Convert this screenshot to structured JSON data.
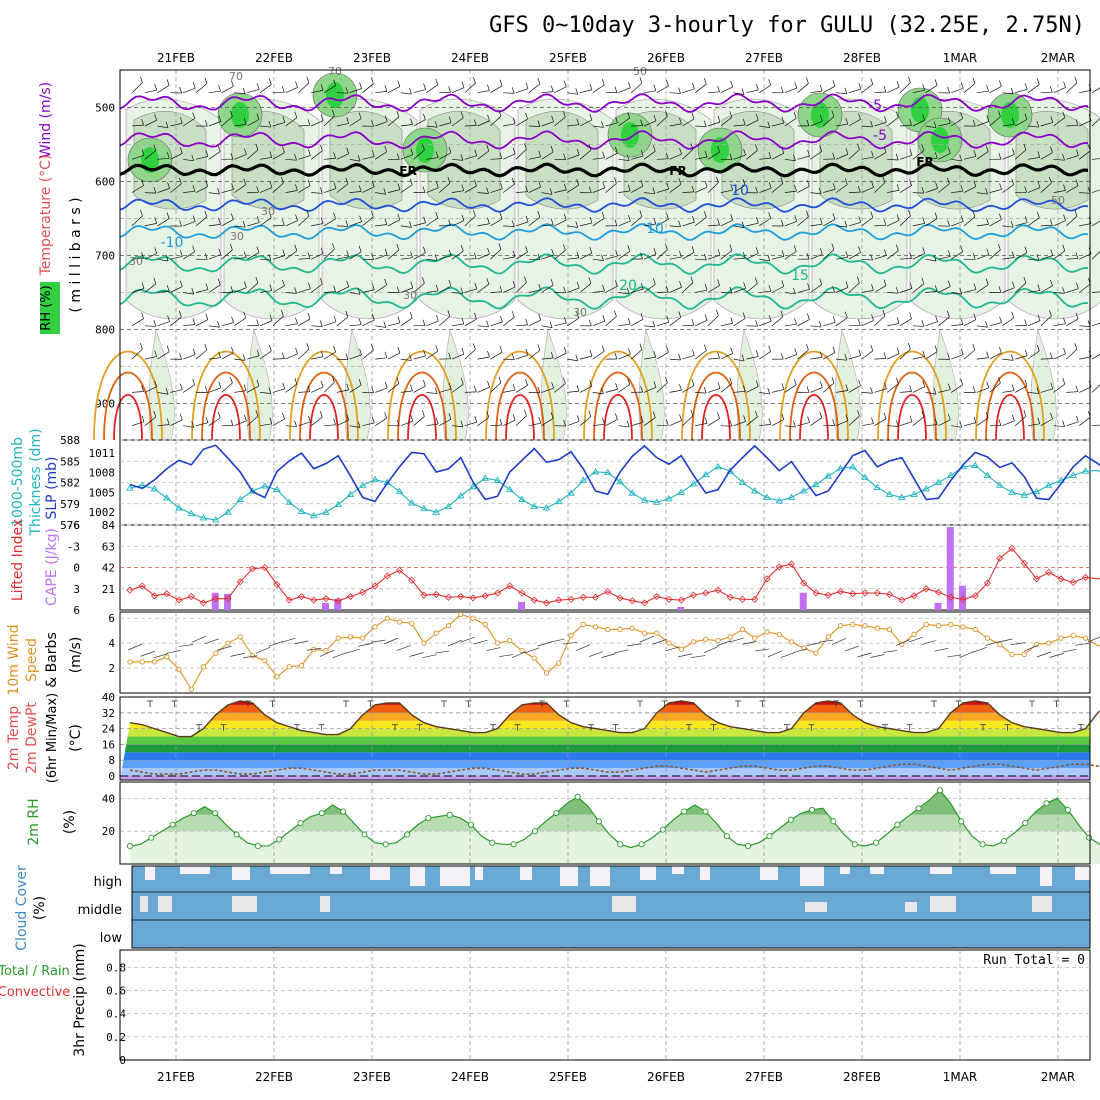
{
  "title": "GFS 0~10day 3-hourly for GULU (32.25E, 2.75N)",
  "days": [
    "21FEB",
    "22FEB",
    "23FEB",
    "24FEB",
    "25FEB",
    "26FEB",
    "27FEB",
    "28FEB",
    "1MAR",
    "2MAR"
  ],
  "panels": {
    "upper_air": {
      "labels": [
        "Wind (m/s)",
        "Temperature (°C)",
        "RH (%)",
        "( m i l l i b a r s )"
      ],
      "pressure_ticks": [
        500,
        600,
        700,
        800,
        900
      ],
      "contour_labels": [
        "FR",
        "FR",
        "FR",
        "-5",
        "-5",
        "10",
        "-10",
        "10",
        "15",
        "20",
        "30",
        "30",
        "30",
        "30",
        "30",
        "50",
        "50",
        "70",
        "70"
      ]
    },
    "thickness_slp": {
      "labels": [
        "1000-500mb",
        "Thickness (dm)",
        "SLP (mb)"
      ],
      "left_ticks": [
        588,
        585,
        582,
        579,
        576
      ],
      "right_ticks": [
        1011,
        1008,
        1005,
        1002
      ]
    },
    "li_cape": {
      "labels": [
        "Lifted Index",
        "CAPE (J/kg)"
      ],
      "left_ticks": [
        -6,
        -3,
        0,
        3,
        6
      ],
      "right_ticks": [
        84,
        63,
        42,
        21
      ]
    },
    "wind10m": {
      "labels": [
        "10m Wind",
        "Speed",
        "& Barbs",
        "(m/s)"
      ],
      "ticks": [
        6,
        4,
        2
      ]
    },
    "temp2m": {
      "labels": [
        "2m Temp",
        "2m DewPt",
        "(6hr Min/Max)",
        "(°C)"
      ],
      "ticks": [
        40,
        32,
        24,
        16,
        8,
        0
      ]
    },
    "rh2m": {
      "labels": [
        "2m RH",
        "(%)"
      ],
      "ticks": [
        40,
        20
      ]
    },
    "cloud": {
      "labels": [
        "Cloud Cover",
        "(%)"
      ],
      "levels": [
        "high",
        "middle",
        "low"
      ]
    },
    "precip": {
      "labels": [
        "Total / Rain",
        "Convective",
        "3hr Precip (mm)"
      ],
      "ticks": [
        0.8,
        0.6,
        0.4,
        0.2,
        0
      ],
      "run_total": "Run Total = 0"
    }
  },
  "colors": {
    "wind_contour": "#8b00c8",
    "temp_cold": "#1f4fd8",
    "temp_cool": "#1e9edc",
    "temp_warm": "#20b890",
    "temp_hot1": "#e0a020",
    "temp_hot2": "#e06010",
    "temp_hot3": "#e02020",
    "rh_green": "#30d040",
    "thickness": "#20b4c0",
    "slp": "#1c3cc8",
    "li": "#e03030",
    "cape": "#c070f0",
    "wind_speed": "#e09020",
    "cloud": "#6aa9d4",
    "rh2m": "#2a9a2a"
  },
  "chart_data": [
    {
      "type": "line",
      "name": "1000-500mb Thickness",
      "units": "dm",
      "ylim": [
        576,
        588
      ],
      "x_start": "21FEB 00Z",
      "x_step_hours": 3,
      "series": [
        {
          "values": [
            581.2,
            581.6,
            581.1,
            579.8,
            578.4,
            577.6,
            577.0,
            576.7,
            577.8,
            579.6,
            580.8,
            581.5,
            581.0,
            579.2,
            577.9,
            577.3,
            577.8,
            578.9,
            580.3,
            581.6,
            582.4,
            582.0,
            580.7,
            579.1,
            578.3,
            577.8,
            578.6,
            580.1,
            581.4,
            582.6,
            582.3,
            581.0,
            579.6,
            578.6,
            578.4,
            579.3,
            580.5,
            582.3,
            583.5,
            583.4,
            582.1,
            580.5,
            579.5,
            579.2,
            579.7,
            580.6,
            581.8,
            583.1,
            584.2,
            583.6,
            582.0,
            580.8,
            579.9,
            579.4,
            579.9,
            580.8,
            581.7,
            582.9,
            584.0,
            584.2,
            582.7,
            581.3,
            580.3,
            579.9,
            580.3,
            581.1,
            582.0,
            583.0,
            584.2,
            584.4,
            583.0,
            581.6,
            580.6,
            580.2,
            580.7,
            581.6,
            582.3,
            583.0,
            583.6,
            583.7,
            582.8,
            581.5,
            580.6,
            580.2,
            580.7,
            581.6,
            582.6,
            583.8,
            584.9,
            585.9,
            585.0,
            583.2,
            581.5,
            580.2,
            580.2,
            581.0
          ]
        }
      ]
    },
    {
      "type": "line",
      "name": "SLP",
      "units": "mb",
      "ylim": [
        1000,
        1013
      ],
      "x_start": "21FEB 00Z",
      "x_step_hours": 3,
      "series": [
        {
          "values": [
            1006.2,
            1005.6,
            1006.9,
            1008.6,
            1009.9,
            1009.2,
            1011.6,
            1012.2,
            1010.2,
            1008.1,
            1005.1,
            1004.2,
            1008.2,
            1009.8,
            1011.0,
            1008.6,
            1009.4,
            1010.6,
            1007.5,
            1004.2,
            1003.6,
            1006.4,
            1008.9,
            1011.1,
            1010.9,
            1008.1,
            1008.6,
            1010.3,
            1006.6,
            1003.9,
            1004.4,
            1008.1,
            1009.9,
            1011.7,
            1009.6,
            1010.0,
            1011.2,
            1008.6,
            1005.2,
            1004.7,
            1008.1,
            1010.5,
            1012.1,
            1010.3,
            1009.3,
            1010.6,
            1007.6,
            1004.9,
            1005.4,
            1008.4,
            1010.3,
            1012.1,
            1010.3,
            1008.3,
            1009.7,
            1007.0,
            1004.5,
            1005.2,
            1007.9,
            1010.6,
            1011.4,
            1008.9,
            1009.8,
            1010.3,
            1007.1,
            1003.9,
            1004.1,
            1006.8,
            1009.2,
            1011.1,
            1010.4,
            1008.8,
            1009.5,
            1007.4,
            1004.1,
            1003.9,
            1006.3,
            1008.9,
            1010.6,
            1009.4,
            1008.1,
            1008.8,
            1006.6,
            1003.9,
            1004.0,
            1006.5,
            1009.6,
            1011.0,
            1009.1,
            1008.9,
            1006.7,
            1002.3,
            1001.1,
            1004.6,
            1007.0,
            1008.2,
            1009.2
          ]
        }
      ]
    },
    {
      "type": "line",
      "name": "Lifted Index",
      "ylim": [
        6,
        -6
      ],
      "x_start": "21FEB 00Z",
      "x_step_hours": 3,
      "series": [
        {
          "values": [
            3.2,
            2.6,
            4.0,
            3.7,
            4.6,
            4.1,
            5.0,
            4.4,
            4.4,
            2.0,
            0.2,
            0.0,
            2.4,
            4.6,
            4.1,
            4.6,
            4.4,
            4.7,
            4.1,
            3.5,
            2.6,
            1.2,
            0.4,
            1.8,
            3.9,
            3.8,
            4.2,
            4.1,
            4.3,
            4.0,
            3.6,
            2.6,
            3.6,
            4.6,
            5.0,
            4.6,
            4.5,
            4.2,
            4.2,
            3.4,
            4.3,
            4.7,
            5.0,
            4.1,
            4.5,
            4.6,
            3.9,
            3.6,
            3.2,
            4.2,
            4.5,
            4.5,
            1.6,
            -0.1,
            -0.5,
            2.2,
            3.6,
            3.9,
            3.4,
            3.7,
            3.6,
            3.6,
            3.8,
            4.6,
            4.0,
            3.0,
            3.5,
            4.2,
            4.5,
            4.0,
            2.2,
            -1.3,
            -2.7,
            -0.6,
            1.6,
            0.7,
            1.6,
            2.1,
            1.4,
            1.6,
            1.4,
            1.2,
            0.6,
            -0.5,
            1.1,
            1.7,
            3.0,
            3.2,
            3.1,
            3.0,
            2.4,
            1.6,
            0.7,
            -1.3,
            0.0,
            2.8,
            3.1
          ]
        }
      ]
    },
    {
      "type": "bar",
      "name": "CAPE",
      "units": "J/kg",
      "ylim": [
        0,
        84
      ],
      "x_start": "21FEB 00Z",
      "x_step_hours": 3,
      "values": [
        0,
        0,
        0,
        0,
        0,
        0,
        0,
        0,
        0,
        0,
        0,
        0,
        0,
        0,
        0,
        0,
        0,
        0,
        0,
        0,
        0,
        0,
        0,
        0,
        0,
        0,
        0,
        0,
        0,
        0,
        0,
        0,
        0,
        0,
        0,
        0,
        0,
        0,
        0,
        0,
        0,
        0,
        0,
        0,
        0,
        0,
        0,
        0,
        0,
        0,
        0,
        0,
        0,
        0,
        0,
        0,
        0,
        0,
        0,
        0,
        0,
        0,
        0,
        0,
        0,
        0,
        0,
        0,
        0,
        0,
        0,
        0,
        0,
        0,
        0,
        0,
        0,
        0,
        0,
        0,
        0,
        0,
        0,
        0,
        0,
        0,
        0,
        0,
        0,
        0,
        0,
        0,
        0,
        0,
        0,
        0,
        0
      ],
      "peaks": {
        "1": 11,
        "11": 17,
        "12": 16,
        "20": 7,
        "21": 11,
        "36": 8,
        "49": 3,
        "59": 17,
        "70": 7,
        "71": 82,
        "72": 24,
        "86": 74,
        "87": 6,
        "93": 6,
        "94": 23,
        "95": 45,
        "96": 11,
        "105": 14
      }
    },
    {
      "type": "line",
      "name": "10m Wind Speed",
      "units": "m/s",
      "ylim": [
        0,
        6.5
      ],
      "x_start": "21FEB 00Z",
      "x_step_hours": 3,
      "series": [
        {
          "values": [
            2.5,
            2.5,
            2.5,
            2.9,
            1.9,
            0.3,
            2.1,
            3.2,
            4.0,
            4.5,
            3.0,
            2.6,
            1.3,
            2.1,
            2.2,
            3.5,
            3.4,
            4.4,
            4.5,
            4.4,
            5.3,
            6.0,
            5.7,
            5.6,
            4.0,
            4.8,
            5.4,
            6.3,
            6.0,
            5.5,
            4.0,
            4.2,
            3.4,
            2.8,
            1.6,
            2.4,
            4.6,
            5.5,
            5.3,
            5.1,
            5.1,
            5.2,
            4.8,
            4.8,
            4.0,
            3.5,
            4.1,
            4.3,
            4.2,
            4.5,
            5.1,
            4.4,
            4.9,
            4.7,
            4.1,
            3.6,
            3.2,
            4.5,
            5.4,
            5.5,
            5.4,
            5.2,
            5.1,
            3.9,
            4.7,
            5.5,
            5.4,
            5.5,
            5.3,
            5.1,
            4.4,
            3.9,
            3.1,
            3.1,
            3.9,
            4.0,
            4.4,
            4.6,
            4.4,
            3.8,
            3.8,
            2.1,
            2.2,
            2.3,
            2.9,
            2.9,
            3.3,
            3.4,
            3.6,
            2.3,
            2.4,
            3.2,
            3.9,
            2.7,
            2.3,
            2.8,
            3.1,
            3.3,
            4.3
          ]
        }
      ]
    },
    {
      "type": "line",
      "name": "2m Temp",
      "units": "°C",
      "ylim": [
        -2,
        40
      ],
      "x_start": "21FEB 00Z",
      "x_step_hours": 3,
      "series": [
        {
          "name": "2m Temp",
          "values": [
            27,
            26,
            24,
            22,
            20,
            20,
            24,
            31,
            36,
            38,
            37,
            31,
            27,
            25,
            23,
            22,
            21,
            21,
            24,
            31,
            36,
            37,
            37,
            31,
            27,
            25,
            24,
            23,
            22,
            22,
            24,
            31,
            36,
            37,
            37,
            31,
            27,
            25,
            24,
            23,
            22,
            22,
            24,
            32,
            37,
            38,
            37,
            31,
            27,
            25,
            24,
            23,
            22,
            22,
            24,
            32,
            37,
            38,
            37,
            31,
            27,
            25,
            24,
            23,
            22,
            22,
            24,
            32,
            37,
            38,
            37,
            31,
            27,
            25,
            24,
            23,
            22,
            22,
            24,
            32,
            37,
            38,
            37,
            31,
            27,
            25,
            24,
            23,
            22,
            22,
            24,
            32,
            37,
            38,
            37,
            31,
            27,
            25,
            24,
            23,
            20,
            24
          ]
        },
        {
          "name": "2m DewPt",
          "values": [
            3,
            2,
            1,
            1,
            1,
            2,
            3,
            3,
            2,
            1,
            1,
            2,
            3,
            4,
            4,
            3,
            2,
            1,
            1,
            2,
            3,
            3,
            3,
            2,
            1,
            1,
            2,
            3,
            4,
            4,
            3,
            2,
            1,
            1,
            2,
            3,
            4,
            4,
            3,
            2,
            2,
            3,
            4,
            5,
            5,
            4,
            3,
            2,
            3,
            4,
            5,
            5,
            4,
            3,
            3,
            4,
            5,
            5,
            4,
            3,
            3,
            4,
            5,
            6,
            6,
            5,
            4,
            3,
            4,
            5,
            6,
            6,
            5,
            4,
            3,
            4,
            5,
            6,
            6,
            5,
            4,
            3,
            4,
            5,
            6,
            6,
            5,
            4,
            4,
            5,
            6,
            7,
            6,
            5,
            4,
            5,
            6,
            7,
            7,
            8
          ]
        }
      ]
    },
    {
      "type": "area",
      "name": "2m RH",
      "units": "%",
      "ylim": [
        0,
        50
      ],
      "x_start": "21FEB 00Z",
      "x_step_hours": 3,
      "series": [
        {
          "values": [
            11,
            12,
            16,
            20,
            24,
            28,
            31,
            35,
            31,
            24,
            18,
            13,
            11,
            11,
            15,
            20,
            25,
            29,
            31,
            36,
            32,
            25,
            18,
            13,
            12,
            13,
            18,
            24,
            28,
            29,
            30,
            28,
            24,
            17,
            13,
            12,
            12,
            15,
            20,
            26,
            31,
            37,
            41,
            35,
            26,
            18,
            12,
            10,
            12,
            16,
            21,
            27,
            32,
            36,
            32,
            25,
            17,
            12,
            11,
            13,
            17,
            22,
            27,
            31,
            33,
            34,
            26,
            18,
            12,
            11,
            13,
            18,
            24,
            29,
            34,
            39,
            45,
            37,
            26,
            17,
            12,
            11,
            14,
            19,
            25,
            32,
            37,
            40,
            33,
            24,
            16,
            12,
            12,
            15,
            19,
            25,
            31,
            34,
            37,
            44,
            35,
            26,
            20,
            16,
            17,
            21,
            27,
            33,
            37,
            46,
            40,
            37
          ]
        }
      ]
    }
  ]
}
